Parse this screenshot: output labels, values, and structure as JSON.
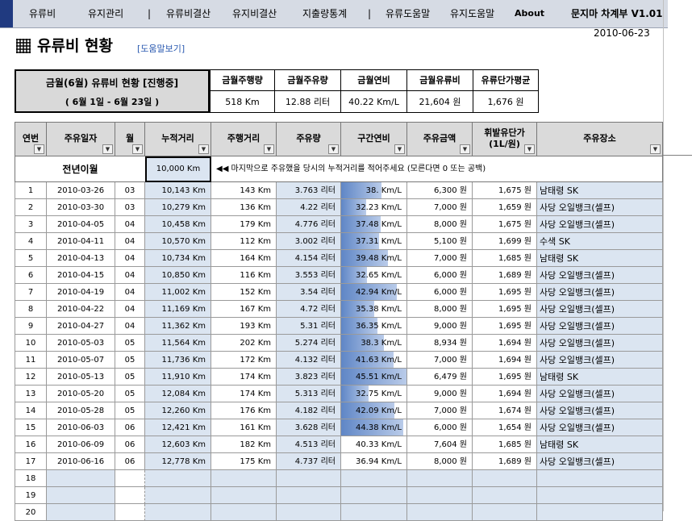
{
  "menu": {
    "items": [
      "유류비",
      "유지관리",
      "|",
      "유류비결산",
      "유지비결산",
      "지출량통계",
      "|",
      "유류도움말",
      "유지도움말",
      "About"
    ],
    "app_title": "문지마 차계부 V1.01"
  },
  "date": "2010-06-23",
  "page": {
    "title": "유류비 현황",
    "help_link": "[도움말보기]"
  },
  "summary": {
    "heading": "금월(6월) 유류비 현황 [진행중]",
    "period": "( 6월 1일 - 6월 23일 )",
    "columns": [
      {
        "label": "금월주행량",
        "value": "518 Km"
      },
      {
        "label": "금월주유량",
        "value": "12.88 리터"
      },
      {
        "label": "금월연비",
        "value": "40.22 Km/L"
      },
      {
        "label": "금월유류비",
        "value": "21,604 원"
      },
      {
        "label": "유류단가평균",
        "value": "1,676 원"
      }
    ]
  },
  "table": {
    "headers": [
      "연번",
      "주유일자",
      "월",
      "누적거리",
      "주행거리",
      "주유량",
      "구간연비",
      "주유금액",
      "휘발유단가\n(1L/원)",
      "주유장소"
    ],
    "prev_label": "전년이월",
    "prev_value": "10,000 Km",
    "prev_hint": "◀◀  마지막으로 주유했을 당시의 누적거리를 적어주세요 (모른다면 0 또는 공백)",
    "rows": [
      [
        "1",
        "2010-03-26",
        "03",
        "10,143 Km",
        "143 Km",
        "3.763 리터",
        "38. Km/L",
        "6,300 원",
        "1,675 원",
        "남태령 SK"
      ],
      [
        "2",
        "2010-03-30",
        "03",
        "10,279 Km",
        "136 Km",
        "4.22 리터",
        "32.23 Km/L",
        "7,000 원",
        "1,659 원",
        "사당 오일뱅크(셀프)"
      ],
      [
        "3",
        "2010-04-05",
        "04",
        "10,458 Km",
        "179 Km",
        "4.776 리터",
        "37.48 Km/L",
        "8,000 원",
        "1,675 원",
        "사당 오일뱅크(셀프)"
      ],
      [
        "4",
        "2010-04-11",
        "04",
        "10,570 Km",
        "112 Km",
        "3.002 리터",
        "37.31 Km/L",
        "5,100 원",
        "1,699 원",
        "수색 SK"
      ],
      [
        "5",
        "2010-04-13",
        "04",
        "10,734 Km",
        "164 Km",
        "4.154 리터",
        "39.48 Km/L",
        "7,000 원",
        "1,685 원",
        "남태령 SK"
      ],
      [
        "6",
        "2010-04-15",
        "04",
        "10,850 Km",
        "116 Km",
        "3.553 리터",
        "32.65 Km/L",
        "6,000 원",
        "1,689 원",
        "사당 오일뱅크(셀프)"
      ],
      [
        "7",
        "2010-04-19",
        "04",
        "11,002 Km",
        "152 Km",
        "3.54 리터",
        "42.94 Km/L",
        "6,000 원",
        "1,695 원",
        "사당 오일뱅크(셀프)"
      ],
      [
        "8",
        "2010-04-22",
        "04",
        "11,169 Km",
        "167 Km",
        "4.72 리터",
        "35.38 Km/L",
        "8,000 원",
        "1,695 원",
        "사당 오일뱅크(셀프)"
      ],
      [
        "9",
        "2010-04-27",
        "04",
        "11,362 Km",
        "193 Km",
        "5.31 리터",
        "36.35 Km/L",
        "9,000 원",
        "1,695 원",
        "사당 오일뱅크(셀프)"
      ],
      [
        "10",
        "2010-05-03",
        "05",
        "11,564 Km",
        "202 Km",
        "5.274 리터",
        "38.3 Km/L",
        "8,934 원",
        "1,694 원",
        "사당 오일뱅크(셀프)"
      ],
      [
        "11",
        "2010-05-07",
        "05",
        "11,736 Km",
        "172 Km",
        "4.132 리터",
        "41.63 Km/L",
        "7,000 원",
        "1,694 원",
        "사당 오일뱅크(셀프)"
      ],
      [
        "12",
        "2010-05-13",
        "05",
        "11,910 Km",
        "174 Km",
        "3.823 리터",
        "45.51 Km/L",
        "6,479 원",
        "1,695 원",
        "남태령 SK"
      ],
      [
        "13",
        "2010-05-20",
        "05",
        "12,084 Km",
        "174 Km",
        "5.313 리터",
        "32.75 Km/L",
        "9,000 원",
        "1,694 원",
        "사당 오일뱅크(셀프)"
      ],
      [
        "14",
        "2010-05-28",
        "05",
        "12,260 Km",
        "176 Km",
        "4.182 리터",
        "42.09 Km/L",
        "7,000 원",
        "1,674 원",
        "사당 오일뱅크(셀프)"
      ],
      [
        "15",
        "2010-06-03",
        "06",
        "12,421 Km",
        "161 Km",
        "3.628 리터",
        "44.38 Km/L",
        "6,000 원",
        "1,654 원",
        "사당 오일뱅크(셀프)"
      ],
      [
        "16",
        "2010-06-09",
        "06",
        "12,603 Km",
        "182 Km",
        "4.513 리터",
        "40.33 Km/L",
        "7,604 원",
        "1,685 원",
        "남태령 SK"
      ],
      [
        "17",
        "2010-06-16",
        "06",
        "12,778 Km",
        "175 Km",
        "4.737 리터",
        "36.94 Km/L",
        "8,000 원",
        "1,689 원",
        "사당 오일뱅크(셀프)"
      ],
      [
        "18",
        "",
        "",
        "",
        "",
        "",
        "",
        "",
        "",
        ""
      ],
      [
        "19",
        "",
        "",
        "",
        "",
        "",
        "",
        "",
        "",
        ""
      ],
      [
        "20",
        "",
        "",
        "",
        "",
        "",
        "",
        "",
        "",
        ""
      ]
    ],
    "efficiency_fill": [
      0.62,
      0.38,
      0.6,
      0.58,
      0.72,
      0.4,
      0.85,
      0.5,
      0.55,
      0.65,
      0.8,
      1.0,
      0.42,
      0.82,
      0.95,
      0,
      0,
      0,
      0,
      0
    ]
  }
}
